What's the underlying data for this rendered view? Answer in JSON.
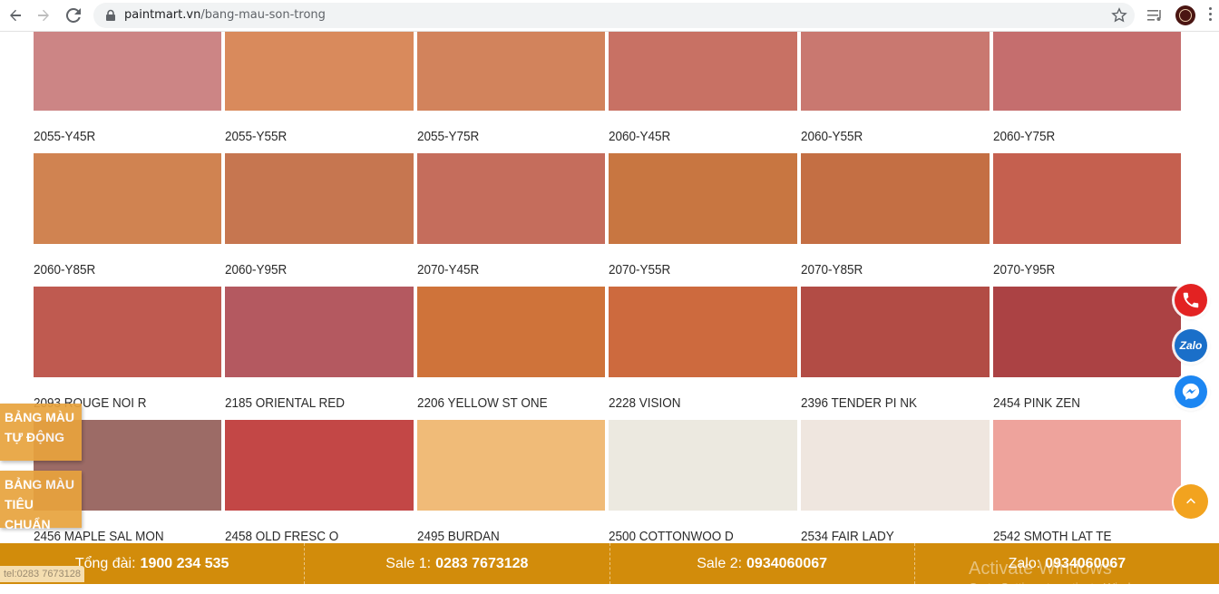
{
  "browser": {
    "url_domain": "paintmart.vn",
    "url_path": "/bang-mau-son-trong"
  },
  "swatch_rows": [
    {
      "colors": [
        "#cc8585",
        "#d98a5c",
        "#d2835c",
        "#c87164",
        "#c97870",
        "#c56e6e"
      ]
    },
    {
      "labels": [
        "2055-Y45R",
        "2055-Y55R",
        "2055-Y75R",
        "2060-Y45R",
        "2060-Y55R",
        "2060-Y75R"
      ],
      "colors": [
        "#d08351",
        "#c67650",
        "#c56d5c",
        "#c87641",
        "#c46f44",
        "#c5604f"
      ]
    },
    {
      "labels": [
        "2060-Y85R",
        "2060-Y95R",
        "2070-Y45R",
        "2070-Y55R",
        "2070-Y85R",
        "2070-Y95R"
      ],
      "colors": [
        "#bf5a50",
        "#b45960",
        "#cf733a",
        "#cd6a3e",
        "#b24c45",
        "#ab4244"
      ]
    },
    {
      "labels": [
        "2093 ROUGE NOI R",
        "2185 ORIENTAL RED",
        "2206 YELLOW ST ONE",
        "2228 VISION",
        "2396 TENDER PI NK",
        "2454 PINK ZEN"
      ],
      "colors": [
        "#9c6b66",
        "#c34746",
        "#f0bb78",
        "#ece9e0",
        "#efe6df",
        "#eea39c"
      ]
    },
    {
      "labels": [
        "2456 MAPLE SAL MON",
        "2458 OLD FRESC O",
        "2495 BURDAN",
        "2500 COTTONWOO D",
        "2534 FAIR LADY",
        "2542 SMOTH LAT TE"
      ]
    }
  ],
  "side_buttons": [
    {
      "line1": "BẢNG MÀU",
      "line2": "TỰ ĐỘNG"
    },
    {
      "line1": "BẢNG MÀU",
      "line2": "TIÊU CHUẨN"
    }
  ],
  "contact_bar": [
    {
      "label": "Tổng đài:",
      "value": "1900 234 535"
    },
    {
      "label": "Sale 1:",
      "value": "0283 7673128"
    },
    {
      "label": "Sale 2:",
      "value": "0934060067"
    },
    {
      "label": "Zalo:",
      "value": "0934060067"
    }
  ],
  "float_icons": {
    "zalo_text": "Zalo"
  },
  "status_tip": "tel:0283 7673128",
  "watermark": {
    "title": "Activate Windows",
    "subtitle": "Go to Settings to activate Windows."
  },
  "colors": {
    "contact_bar_bg": "#d28c0b",
    "side_button_bg": "#e8a33d",
    "phone_icon_bg": "#e32222",
    "zalo_icon_bg": "#1a6fc9",
    "messenger_icon_bg": "#1c86f2",
    "totop_bg": "#f2a31f"
  }
}
